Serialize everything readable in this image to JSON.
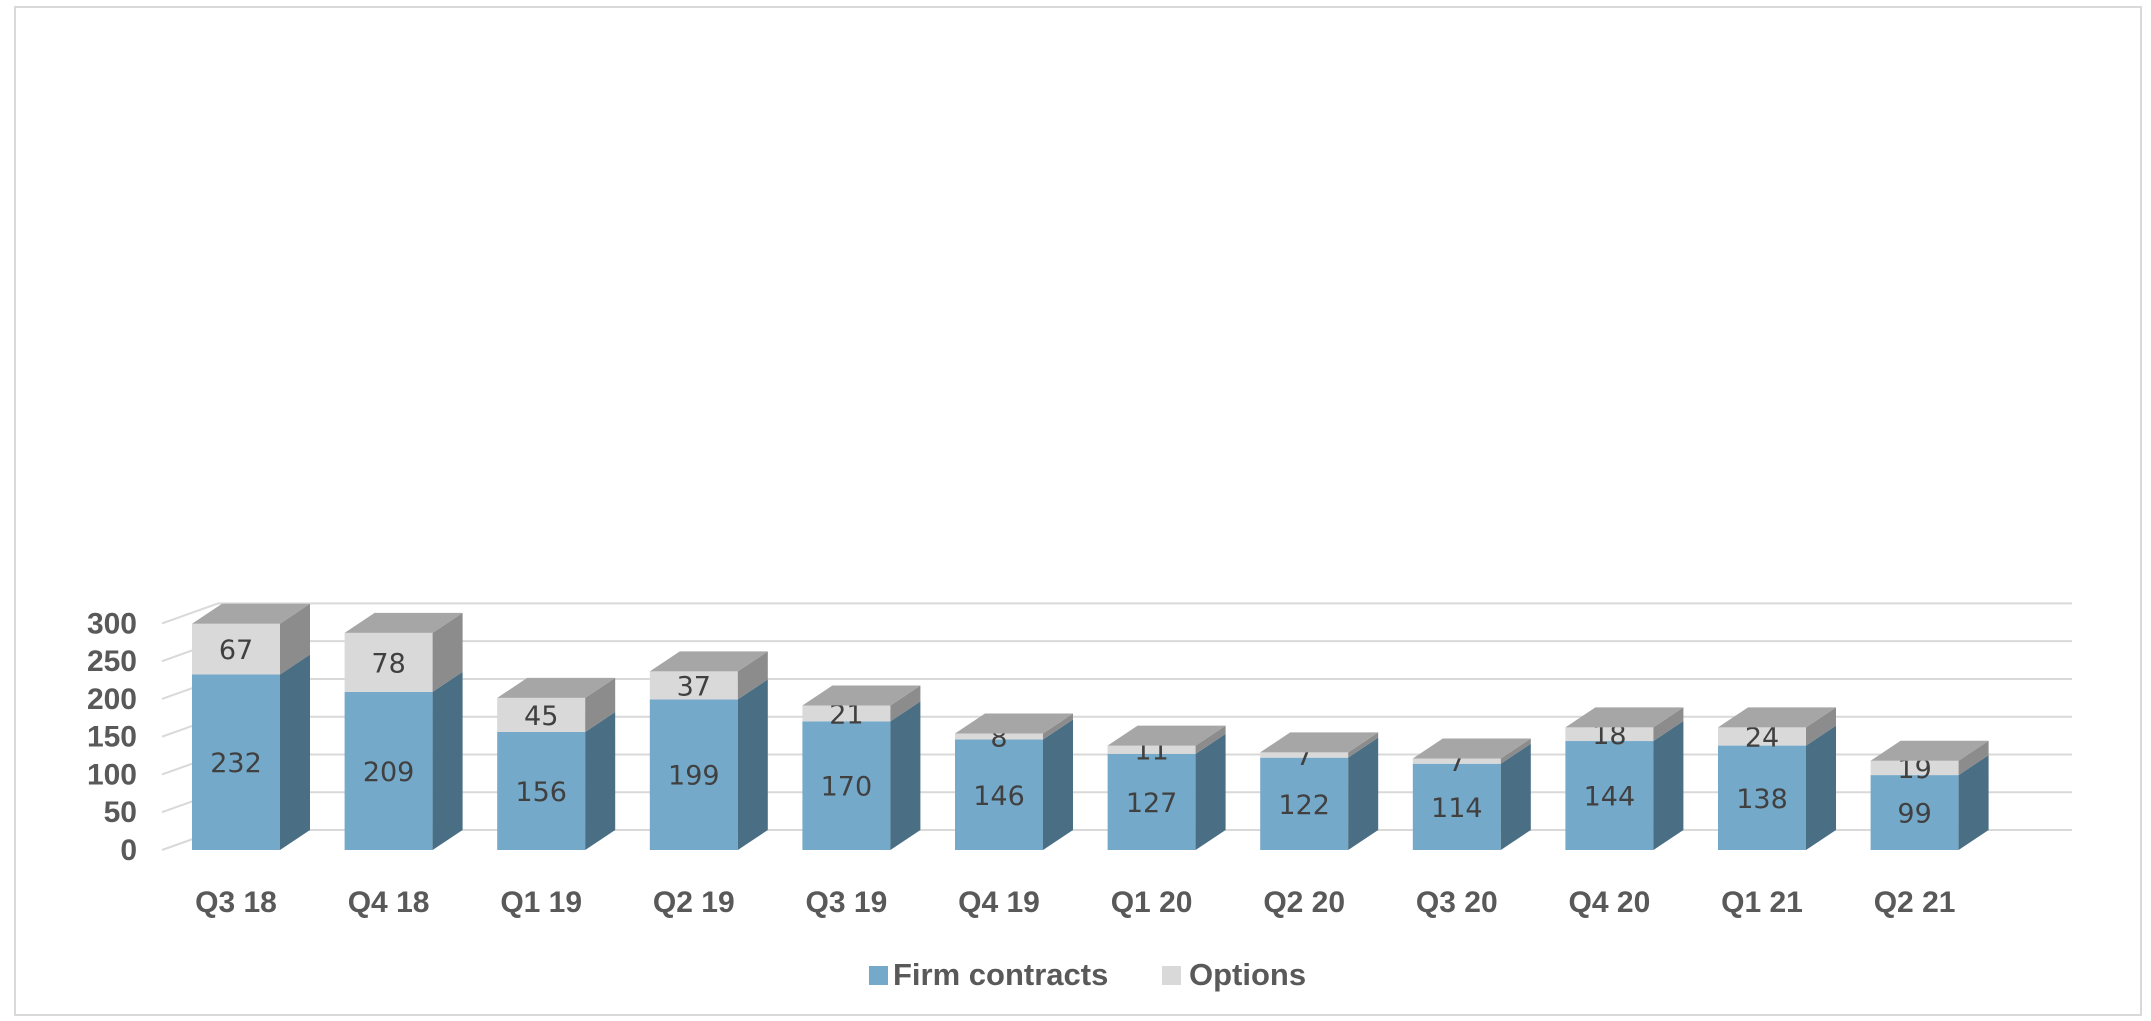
{
  "chart_data": {
    "type": "bar",
    "stacked": true,
    "three_d": true,
    "categories": [
      "Q3 18",
      "Q4 18",
      "Q1 19",
      "Q2 19",
      "Q3 19",
      "Q4 19",
      "Q1 20",
      "Q2 20",
      "Q3 20",
      "Q4 20",
      "Q1 21",
      "Q2 21"
    ],
    "series": [
      {
        "name": "Firm contracts",
        "values": [
          232,
          209,
          156,
          199,
          170,
          146,
          127,
          122,
          114,
          144,
          138,
          99
        ],
        "color": "#75a9c9"
      },
      {
        "name": "Options",
        "values": [
          67,
          78,
          45,
          37,
          21,
          8,
          11,
          7,
          7,
          18,
          24,
          19
        ],
        "color": "#d9d9d9"
      }
    ],
    "yticks": [
      "0",
      "50",
      "100",
      "150",
      "200",
      "250",
      "300"
    ],
    "ylim": [
      0,
      300
    ],
    "grid": true,
    "legend_position": "bottom",
    "data_labels": true
  }
}
